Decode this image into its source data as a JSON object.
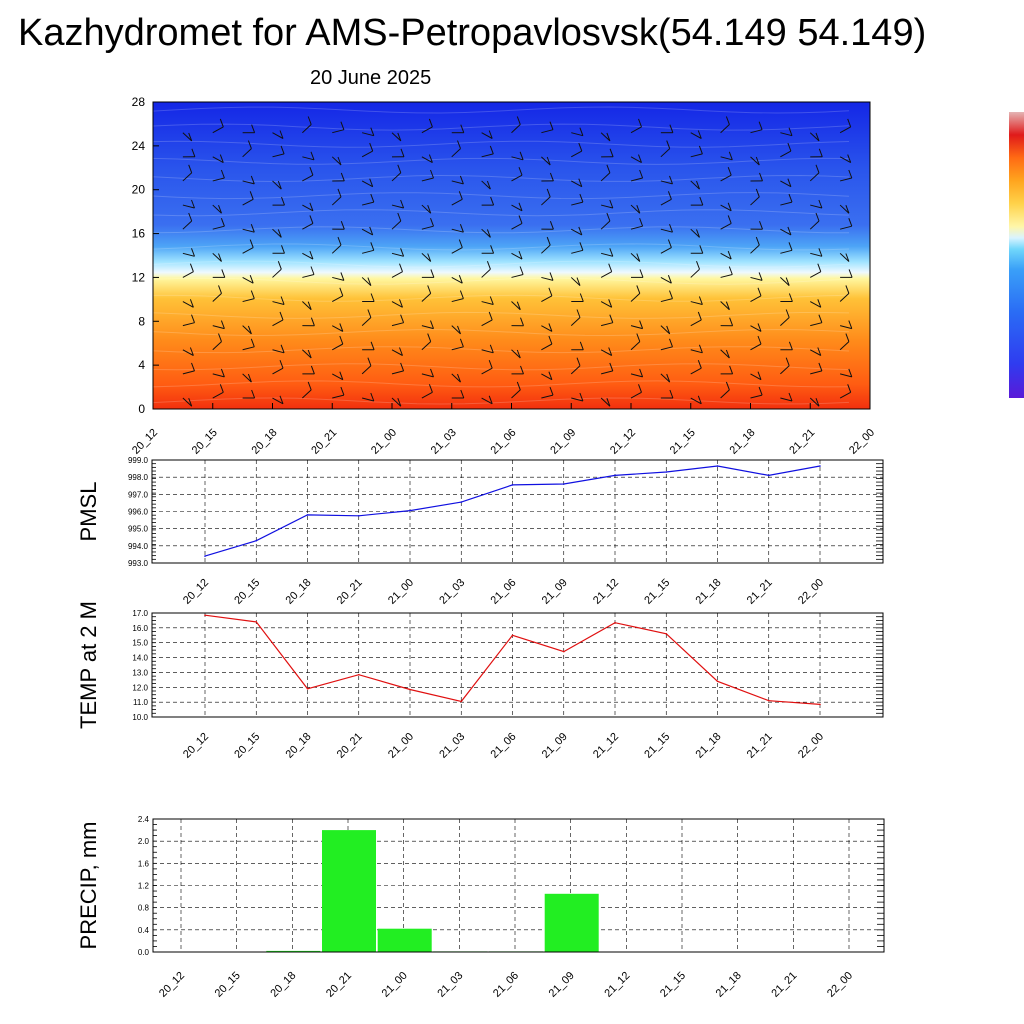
{
  "title": "Kazhydromet for AMS-Petropavlosvsk(54.149 54.149)",
  "subtitle": "20 June 2025",
  "chart_data": [
    {
      "type": "heatmap",
      "title": "",
      "y_ticks": [
        0,
        4,
        8,
        12,
        16,
        20,
        24,
        28
      ],
      "ylim": [
        0,
        28
      ],
      "x_ticks": [
        "20_12",
        "20_15",
        "20_18",
        "20_21",
        "21_00",
        "21_03",
        "21_06",
        "21_09",
        "21_12",
        "21_15",
        "21_18",
        "21_21",
        "22_00"
      ],
      "overlay": "wind barbs",
      "colorbar": [
        "#5a1ad8",
        "#2f3cf0",
        "#2a6cf5",
        "#3aa0f8",
        "#70d6fb",
        "#d9f3ff",
        "#fff6a8",
        "#ffd24a",
        "#ffa51e",
        "#ff6b14",
        "#ee2a10",
        "#e01a1a",
        "#e4b4b4"
      ]
    },
    {
      "type": "line",
      "ylabel": "PMSL",
      "x": [
        "20_12",
        "20_15",
        "20_18",
        "20_21",
        "21_00",
        "21_03",
        "21_06",
        "21_09",
        "21_12",
        "21_15",
        "21_18",
        "21_21",
        "22_00"
      ],
      "values": [
        993.4,
        994.3,
        995.8,
        995.75,
        996.05,
        996.55,
        997.55,
        997.6,
        998.1,
        998.3,
        998.65,
        998.1,
        998.65
      ],
      "ylim": [
        993.0,
        999.0
      ],
      "y_ticks": [
        "993.0",
        "994.0",
        "995.0",
        "996.0",
        "997.0",
        "998.0",
        "999.0"
      ],
      "color": "#1010e0",
      "grid": true
    },
    {
      "type": "line",
      "ylabel": "TEMP at 2 M",
      "x": [
        "20_12",
        "20_15",
        "20_18",
        "20_21",
        "21_00",
        "21_03",
        "21_06",
        "21_09",
        "21_12",
        "21_15",
        "21_18",
        "21_21",
        "22_00"
      ],
      "values": [
        16.85,
        16.4,
        11.9,
        12.85,
        11.85,
        11.05,
        15.5,
        14.4,
        16.35,
        15.6,
        12.4,
        11.1,
        10.85
      ],
      "ylim": [
        10.0,
        17.0
      ],
      "y_ticks": [
        "10.0",
        "11.0",
        "12.0",
        "13.0",
        "14.0",
        "15.0",
        "16.0",
        "17.0"
      ],
      "color": "#e01010",
      "grid": true
    },
    {
      "type": "bar",
      "ylabel": "PRECIP, mm",
      "categories": [
        "20_12",
        "20_15",
        "20_18",
        "20_21",
        "21_00",
        "21_03",
        "21_06",
        "21_09",
        "21_12",
        "21_15",
        "21_18",
        "21_21",
        "22_00"
      ],
      "values": [
        0,
        0,
        0.02,
        2.2,
        0.42,
        0.01,
        0.01,
        1.05,
        0,
        0,
        0,
        0,
        0
      ],
      "ylim": [
        0.0,
        2.4
      ],
      "y_ticks": [
        "0.0",
        "0.4",
        "0.8",
        "1.2",
        "1.6",
        "2.0",
        "2.4"
      ],
      "color": "#22ee22",
      "grid": true
    }
  ]
}
